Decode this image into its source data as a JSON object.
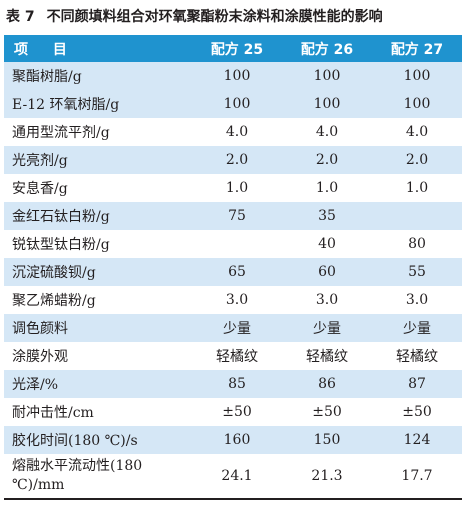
{
  "caption": {
    "number": "表 7",
    "title": "不同颜填料组合对环氧聚酯粉末涂料和涂膜性能的影响"
  },
  "header": [
    "项 目",
    "配方 25",
    "配方 26",
    "配方 27"
  ],
  "rows": [
    {
      "label": "聚酯树脂/g",
      "v": [
        "100",
        "100",
        "100"
      ]
    },
    {
      "label": "E-12 环氧树脂/g",
      "v": [
        "100",
        "100",
        "100"
      ]
    },
    {
      "label": "通用型流平剂/g",
      "v": [
        "4.0",
        "4.0",
        "4.0"
      ]
    },
    {
      "label": "光亮剂/g",
      "v": [
        "2.0",
        "2.0",
        "2.0"
      ]
    },
    {
      "label": "安息香/g",
      "v": [
        "1.0",
        "1.0",
        "1.0"
      ]
    },
    {
      "label": "金红石钛白粉/g",
      "v": [
        "75",
        "35",
        ""
      ]
    },
    {
      "label": "锐钛型钛白粉/g",
      "v": [
        "",
        "40",
        "80"
      ]
    },
    {
      "label": "沉淀硫酸钡/g",
      "v": [
        "65",
        "60",
        "55"
      ]
    },
    {
      "label": "聚乙烯蜡粉/g",
      "v": [
        "3.0",
        "3.0",
        "3.0"
      ]
    },
    {
      "label": "调色颜料",
      "v": [
        "少量",
        "少量",
        "少量"
      ]
    },
    {
      "label": "涂膜外观",
      "v": [
        "轻橘纹",
        "轻橘纹",
        "轻橘纹"
      ]
    },
    {
      "label": "光泽/%",
      "v": [
        "85",
        "86",
        "87"
      ]
    },
    {
      "label": "耐冲击性/cm",
      "v": [
        "±50",
        "±50",
        "±50"
      ]
    },
    {
      "label": "胶化时间(180 ℃)/s",
      "v": [
        "160",
        "150",
        "124"
      ]
    },
    {
      "label": "熔融水平流动性(180 ℃)/mm",
      "v": [
        "24.1",
        "21.3",
        "17.7"
      ]
    }
  ],
  "colors": {
    "header_bg": "#1f93cf",
    "header_text": "#ffffff",
    "shade_row": "#d5e7f6",
    "text": "#231f20"
  }
}
